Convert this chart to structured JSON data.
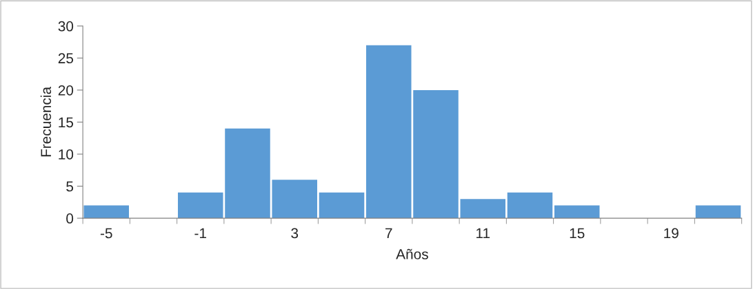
{
  "chart_data": {
    "type": "bar",
    "xlabel": "Años",
    "ylabel": "Frecuencia",
    "categories": [
      "-5",
      null,
      "-1",
      null,
      "3",
      null,
      "7",
      null,
      "11",
      null,
      "15",
      null,
      "19",
      null
    ],
    "values": [
      2,
      0,
      4,
      14,
      6,
      4,
      27,
      20,
      3,
      4,
      2,
      0,
      0,
      2
    ],
    "color": "#5b9bd5",
    "ylim": [
      0,
      30
    ],
    "yticks": [
      0,
      5,
      10,
      15,
      20,
      25,
      30
    ],
    "grid": false,
    "legend": false
  }
}
